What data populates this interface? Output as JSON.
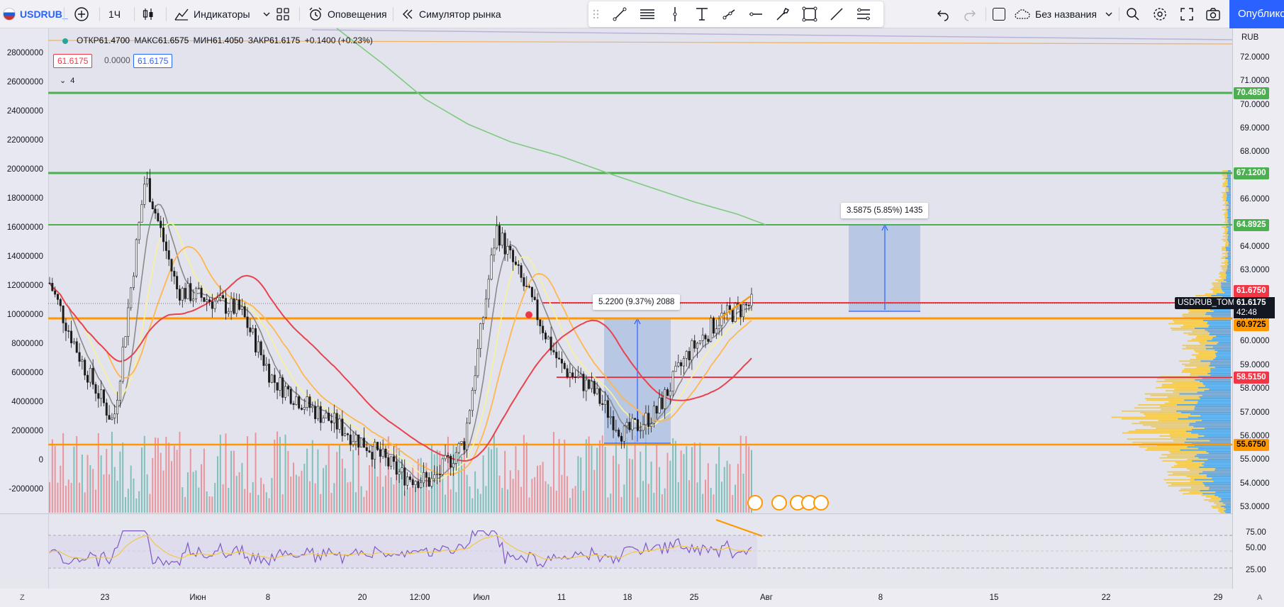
{
  "topbar": {
    "symbol": "USDRUB_",
    "interval": "1Ч",
    "indicators": "Индикаторы",
    "alerts": "Оповещения",
    "replay": "Симулятор рынка",
    "layout_name": "Без названия",
    "publish": "Опубликовать"
  },
  "legend": {
    "open_label": "ОТКР",
    "open": "61.4700",
    "high_label": "МАКС",
    "high": "61.6575",
    "low_label": "МИН",
    "low": "61.4050",
    "close_label": "ЗАКР",
    "close": "61.6175",
    "change": "+0.1400 (+0.23%)",
    "bid": "61.6175",
    "spread": "0.0000",
    "ask": "61.6175",
    "collapsed_count": "4"
  },
  "currency": "RUB",
  "right_scale": [
    "72.0000",
    "71.0000",
    "70.0000",
    "69.0000",
    "68.0000",
    "67.0000",
    "66.0000",
    "65.0000",
    "64.0000",
    "63.0000",
    "62.0000",
    "61.0000",
    "60.0000",
    "59.0000",
    "58.0000",
    "57.0000",
    "56.0000",
    "55.0000",
    "54.0000",
    "53.0000"
  ],
  "left_scale": [
    "28000000",
    "26000000",
    "24000000",
    "22000000",
    "20000000",
    "18000000",
    "16000000",
    "14000000",
    "12000000",
    "10000000",
    "8000000",
    "6000000",
    "4000000",
    "2000000",
    "0",
    "-2000000"
  ],
  "rsi_scale": [
    "75.00",
    "50.00",
    "25.00"
  ],
  "tags": {
    "line_top": "70.4850",
    "line_2": "67.1200",
    "line_3": "64.8925",
    "red_high": "61.6750",
    "symbol_tag": "USDRUB_TOM",
    "last_price": "61.6175",
    "countdown": "42:48",
    "orange_mid": "60.9725",
    "red_mid": "58.5150",
    "orange_low": "55.6750"
  },
  "measure1": "5.2200 (9.37%) 2088",
  "measure2": "3.5875 (5.85%) 1435",
  "time_axis": [
    "23",
    "Июн",
    "8",
    "20",
    "12:00",
    "Июл",
    "11",
    "18",
    "25",
    "Авг",
    "8",
    "15",
    "22",
    "29"
  ],
  "colors": {
    "green_line": "#4caf50",
    "orange_line": "#ff9800",
    "red_line": "#f23645",
    "accent": "#2962ff",
    "measure_fill": "#a8bde0"
  },
  "chart_data": {
    "type": "line",
    "title": "",
    "series": [
      {
        "values": [
          62.5,
          59.2,
          56.6,
          67.0,
          62.2,
          61.8,
          61.3,
          58.4,
          57.4,
          56.5,
          55.6,
          54.4,
          54.1,
          55.8,
          64.8,
          62.0,
          59.0,
          58.0,
          56.1,
          57.0,
          59.5,
          61.0,
          61.6
        ]
      }
    ],
    "ylim": [
      53,
      72.5
    ],
    "horizontal_levels": [
      70.485,
      67.12,
      64.8925,
      61.675,
      60.9725,
      58.515,
      55.675
    ]
  }
}
